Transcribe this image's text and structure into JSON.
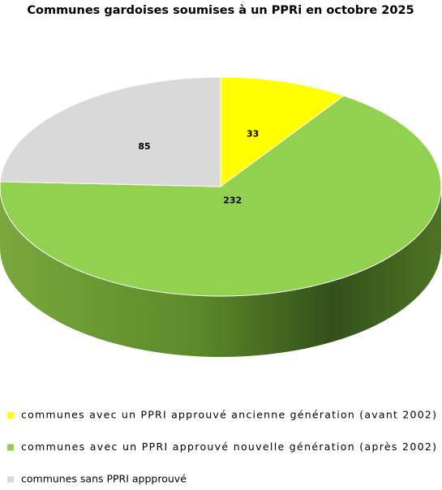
{
  "chart_data": {
    "type": "pie",
    "title": "Communes gardoises soumises à un PPRi en octobre 2025",
    "categories": [
      "communes avec un PPRI approuvé ancienne génération (avant 2002)",
      "communes avec un PPRI approuvé nouvelle génération (après 2002)",
      "communes sans PPRI appprouvé"
    ],
    "values": [
      33,
      232,
      85
    ],
    "colors": [
      "#ffff00",
      "#92d050",
      "#d9d9d9"
    ]
  }
}
